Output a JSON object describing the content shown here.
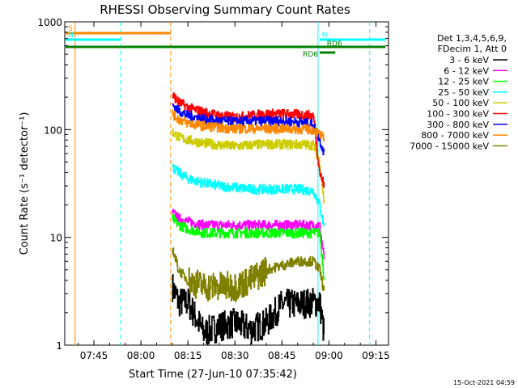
{
  "chart_data": {
    "type": "line",
    "title": "RHESSI Observing Summary Count Rates",
    "xlabel": "Start Time (27-Jun-10 07:35:42)",
    "ylabel": "Count Rate (s⁻¹ detector⁻¹)",
    "y_scale": "log",
    "ylim": [
      1,
      1000
    ],
    "xlim": [
      "07:35:42",
      "09:19:00"
    ],
    "x_ticks": [
      "07:45",
      "08:00",
      "08:15",
      "08:30",
      "08:45",
      "09:00",
      "09:15"
    ],
    "y_ticks": [
      "1",
      "10",
      "100",
      "1000"
    ],
    "legend": {
      "position": "right",
      "header": [
        "Det 1,3,4,5,6,9,",
        "FDecim 1, Att 0"
      ]
    },
    "series": [
      {
        "name": "3 - 6 keV",
        "color": "#000000",
        "x": [
          "08:10:00",
          "08:12:00",
          "08:15:00",
          "08:20:00",
          "08:25:00",
          "08:30:00",
          "08:35:00",
          "08:40:00",
          "08:45:00",
          "08:50:00",
          "08:55:00",
          "08:57:00",
          "08:58:30"
        ],
        "values": [
          3.5,
          2.5,
          2.5,
          1.3,
          1.5,
          1.6,
          1.4,
          1.6,
          2.4,
          2.4,
          2.5,
          2.5,
          1.2
        ]
      },
      {
        "name": "6 - 12 keV",
        "color": "#ff00ff",
        "x": [
          "08:10:00",
          "08:12:00",
          "08:15:00",
          "08:20:00",
          "08:25:00",
          "08:30:00",
          "08:35:00",
          "08:40:00",
          "08:45:00",
          "08:50:00",
          "08:55:00",
          "08:57:00",
          "08:58:30"
        ],
        "values": [
          17,
          15,
          14,
          13,
          13,
          13,
          13,
          13,
          13,
          13,
          13,
          13,
          6
        ]
      },
      {
        "name": "12 - 25 keV",
        "color": "#00ff00",
        "x": [
          "08:10:00",
          "08:12:00",
          "08:15:00",
          "08:20:00",
          "08:25:00",
          "08:30:00",
          "08:35:00",
          "08:40:00",
          "08:45:00",
          "08:50:00",
          "08:55:00",
          "08:57:00",
          "08:58:30"
        ],
        "values": [
          15,
          13,
          12,
          11,
          11,
          11,
          11,
          11,
          11,
          11,
          11,
          11,
          4
        ]
      },
      {
        "name": "25 - 50 keV",
        "color": "#00ffff",
        "x": [
          "08:10:00",
          "08:12:00",
          "08:15:00",
          "08:20:00",
          "08:25:00",
          "08:30:00",
          "08:35:00",
          "08:40:00",
          "08:45:00",
          "08:50:00",
          "08:55:00",
          "08:57:00",
          "08:58:30"
        ],
        "values": [
          45,
          40,
          35,
          32,
          30,
          29,
          28,
          28,
          28,
          28,
          27,
          20,
          12
        ]
      },
      {
        "name": "50 - 100 keV",
        "color": "#cccc00",
        "x": [
          "08:10:00",
          "08:12:00",
          "08:15:00",
          "08:20:00",
          "08:25:00",
          "08:30:00",
          "08:35:00",
          "08:40:00",
          "08:45:00",
          "08:50:00",
          "08:55:00",
          "08:57:00",
          "08:58:30"
        ],
        "values": [
          95,
          85,
          80,
          75,
          72,
          70,
          72,
          73,
          73,
          73,
          72,
          50,
          20
        ]
      },
      {
        "name": "100 - 300 keV",
        "color": "#ff0000",
        "x": [
          "08:10:00",
          "08:12:00",
          "08:15:00",
          "08:20:00",
          "08:25:00",
          "08:30:00",
          "08:35:00",
          "08:40:00",
          "08:45:00",
          "08:50:00",
          "08:55:00",
          "08:57:00",
          "08:58:30"
        ],
        "values": [
          210,
          180,
          160,
          145,
          135,
          130,
          135,
          140,
          140,
          138,
          135,
          40,
          30
        ]
      },
      {
        "name": "300 - 800 keV",
        "color": "#0000ff",
        "x": [
          "08:10:00",
          "08:12:00",
          "08:15:00",
          "08:20:00",
          "08:25:00",
          "08:30:00",
          "08:35:00",
          "08:40:00",
          "08:45:00",
          "08:50:00",
          "08:55:00",
          "08:57:00",
          "08:58:30"
        ],
        "values": [
          170,
          150,
          135,
          125,
          120,
          118,
          120,
          120,
          120,
          118,
          112,
          80,
          60
        ]
      },
      {
        "name": "800 - 7000 keV",
        "color": "#ff8800",
        "x": [
          "08:10:00",
          "08:12:00",
          "08:15:00",
          "08:20:00",
          "08:25:00",
          "08:30:00",
          "08:35:00",
          "08:40:00",
          "08:45:00",
          "08:50:00",
          "08:55:00",
          "08:57:00",
          "08:58:30"
        ],
        "values": [
          140,
          125,
          115,
          108,
          104,
          102,
          102,
          102,
          102,
          101,
          100,
          90,
          80
        ]
      },
      {
        "name": "7000 - 15000 keV",
        "color": "#808000",
        "x": [
          "08:10:00",
          "08:12:00",
          "08:15:00",
          "08:20:00",
          "08:25:00",
          "08:30:00",
          "08:35:00",
          "08:40:00",
          "08:45:00",
          "08:50:00",
          "08:55:00",
          "08:57:00",
          "08:58:30"
        ],
        "values": [
          8,
          5,
          4,
          3.5,
          3.5,
          3.5,
          4,
          5,
          5.5,
          6,
          6,
          5,
          3
        ]
      }
    ],
    "flags": [
      {
        "label": "S",
        "color": "#ff8800",
        "start": "07:36:00",
        "end": "08:09:30"
      },
      {
        "label": "N",
        "color": "#00ffff",
        "start": "07:36:00",
        "end": "07:53:30"
      },
      {
        "label": "N",
        "color": "#00ffff",
        "start": "08:57:00",
        "end": "09:18:00"
      },
      {
        "label": "",
        "color": "#008000",
        "start": "07:36:00",
        "end": "09:18:00"
      },
      {
        "label": "RD6",
        "color": "#008000",
        "start": "08:57:00",
        "end": "09:02:00"
      },
      {
        "label": "RD6",
        "color": "#008000",
        "start": "",
        "end": ""
      }
    ],
    "vlines": [
      {
        "time": "07:39:00",
        "color": "#ff8800",
        "style": "solid"
      },
      {
        "time": "07:53:30",
        "color": "#00ffff",
        "style": "dashed"
      },
      {
        "time": "08:09:30",
        "color": "#ff8800",
        "style": "dashed"
      },
      {
        "time": "08:56:30",
        "color": "#00ffff",
        "style": "solid"
      },
      {
        "time": "09:13:00",
        "color": "#00ffff",
        "style": "dashed"
      }
    ]
  },
  "footer": {
    "date_stamp": "15-Oct-2021 04:59"
  }
}
